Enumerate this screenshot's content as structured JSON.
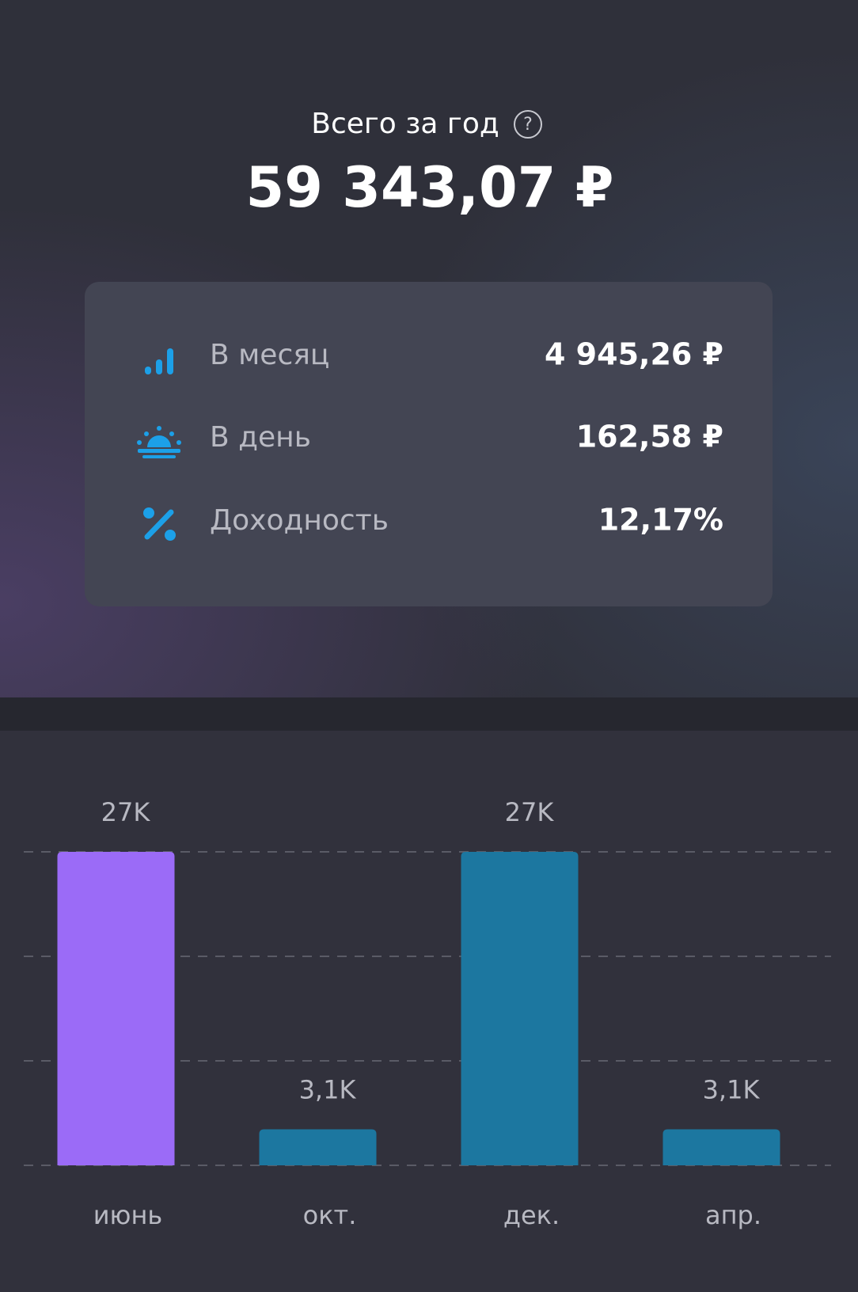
{
  "header": {
    "title": "Всего за год",
    "total": "59 343,07 ₽"
  },
  "stats": [
    {
      "label": "В месяц",
      "value": "4 945,26 ₽"
    },
    {
      "label": "В день",
      "value": "162,58 ₽"
    },
    {
      "label": "Доходность",
      "value": "12,17%"
    }
  ],
  "chart_data": {
    "type": "bar",
    "categories": [
      "июнь",
      "окт.",
      "дек.",
      "апр."
    ],
    "values": [
      27000,
      3100,
      27000,
      3100
    ],
    "value_labels": [
      "27K",
      "3,1K",
      "27K",
      "3,1K"
    ],
    "colors": [
      "#9b6bf7",
      "#1c77a0",
      "#1c77a0",
      "#1c77a0"
    ],
    "ylim": [
      0,
      27000
    ],
    "yticks": [
      0,
      9000,
      18000,
      27000
    ],
    "grid": true
  }
}
